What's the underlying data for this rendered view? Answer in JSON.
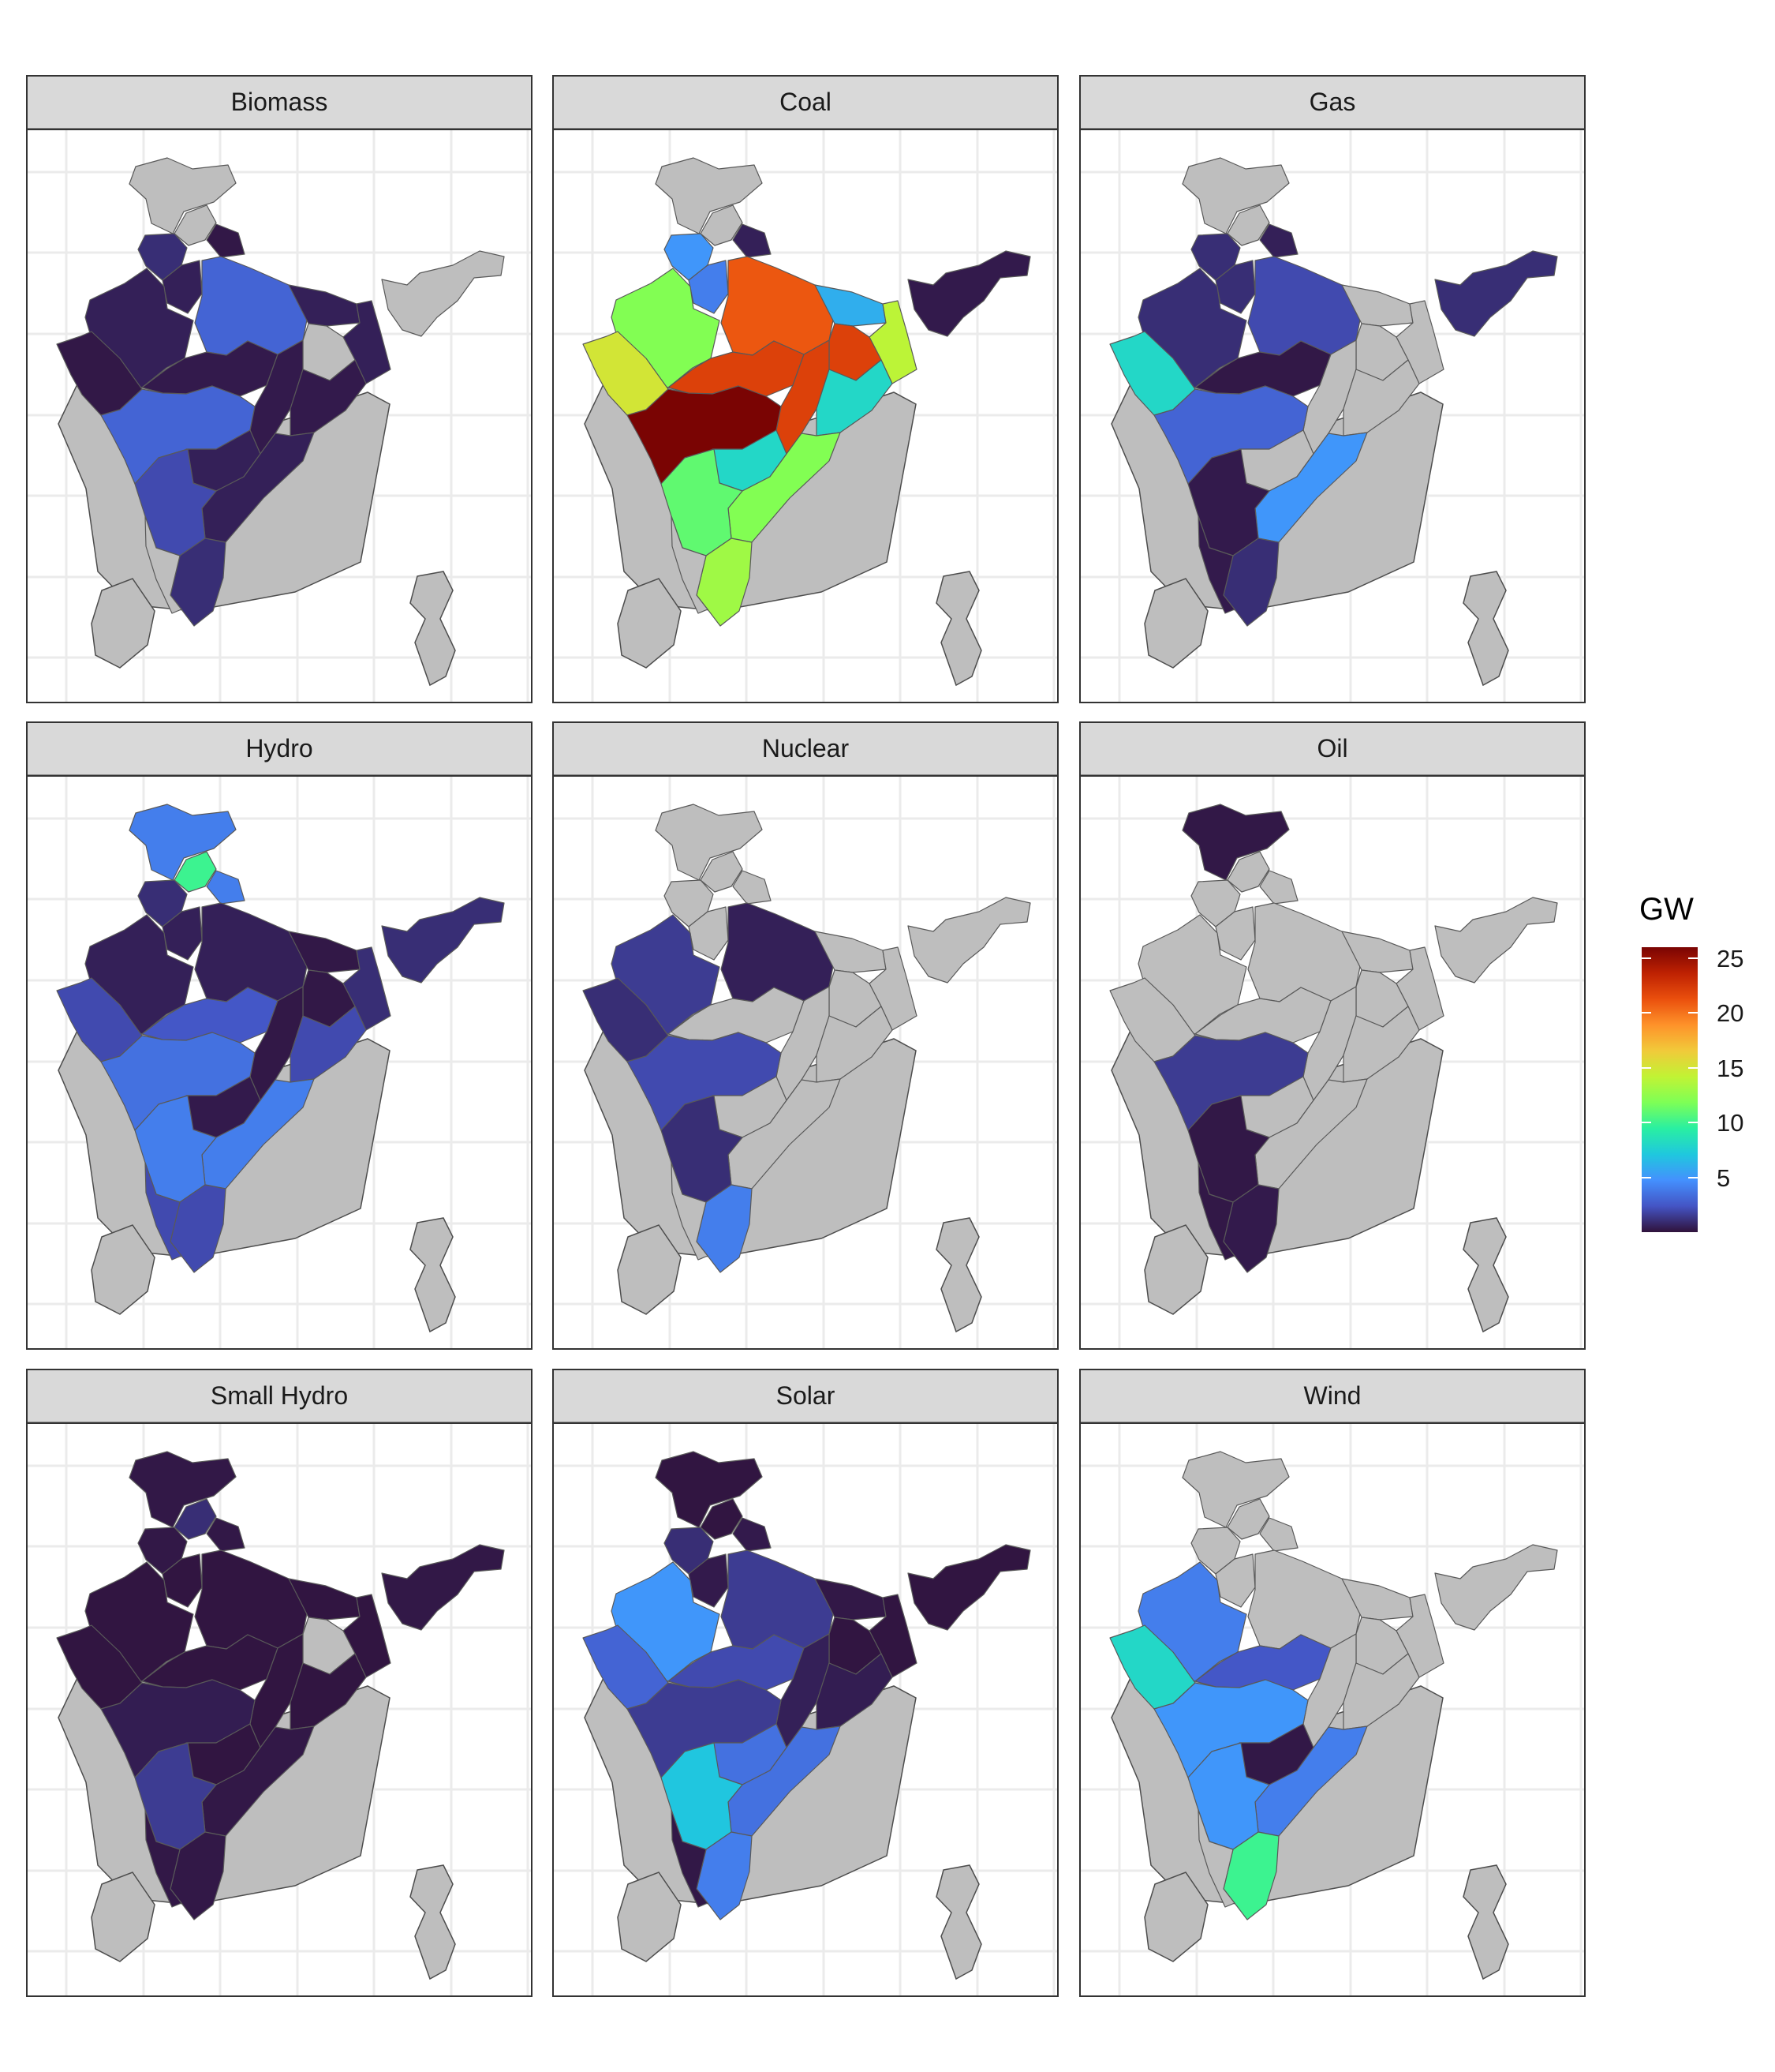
{
  "chart_data": {
    "type": "choropleth",
    "facet_by": "fuel",
    "legend": {
      "title": "GW",
      "ticks": [
        5,
        10,
        15,
        20,
        25
      ],
      "tick_labels": [
        "5",
        "10",
        "15",
        "20",
        "25"
      ],
      "range": [
        0,
        26
      ],
      "palette": [
        "#30123b",
        "#4454c4",
        "#4490fe",
        "#1fc8de",
        "#29efa2",
        "#7dff56",
        "#c1f334",
        "#f1ca3a",
        "#fe922a",
        "#ea4f0d",
        "#be2102",
        "#7a0403"
      ],
      "placement": "right"
    },
    "no_data_color": "#bebebe",
    "panels": [
      {
        "label": "Biomass",
        "values": {
          "JK": null,
          "HP": null,
          "PB": 1,
          "HR": 0.5,
          "UK": 0.2,
          "RJ": 0.5,
          "UP": 3,
          "BR": 0.5,
          "NE": null,
          "WB": 0.5,
          "GJ": 0.2,
          "MP": 0.3,
          "JH": null,
          "CG": 0.3,
          "OD": 0.3,
          "MH": 3,
          "TG": 0.5,
          "AP": 0.5,
          "KA": 2,
          "TN": 1,
          "KL": null
        }
      },
      {
        "label": "Coal",
        "values": {
          "JK": null,
          "HP": null,
          "PB": 5,
          "HR": 4,
          "UK": 0.5,
          "RJ": 12,
          "UP": 21,
          "BR": 6,
          "NE": 0.3,
          "WB": 14,
          "GJ": 15,
          "MP": 22,
          "JH": 22,
          "CG": 22,
          "OD": 8,
          "MH": 26,
          "TG": 8,
          "AP": 12,
          "KA": 11,
          "TN": 13,
          "KL": null
        }
      },
      {
        "label": "Gas",
        "values": {
          "JK": null,
          "HP": null,
          "PB": 1,
          "HR": 1,
          "UK": 0.5,
          "RJ": 1,
          "UP": 2,
          "BR": null,
          "NE": 1,
          "WB": null,
          "GJ": 8,
          "MP": 0.2,
          "JH": null,
          "CG": null,
          "OD": null,
          "MH": 3,
          "TG": null,
          "AP": 5,
          "KA": 0.3,
          "TN": 1,
          "KL": 0.3
        }
      },
      {
        "label": "Hydro",
        "values": {
          "JK": 4,
          "HP": 10,
          "PB": 1,
          "HR": 0.5,
          "UK": 4,
          "RJ": 0.5,
          "UP": 0.5,
          "BR": 0.2,
          "NE": 1,
          "WB": 1,
          "GJ": 2,
          "MP": 2.5,
          "JH": 0.2,
          "CG": 0.2,
          "OD": 2,
          "MH": 3.5,
          "TG": 0.3,
          "AP": 4,
          "KA": 4,
          "TN": 2,
          "KL": 2
        }
      },
      {
        "label": "Nuclear",
        "values": {
          "JK": null,
          "HP": null,
          "PB": null,
          "HR": null,
          "UK": null,
          "RJ": 1.5,
          "UP": 0.5,
          "BR": null,
          "NE": null,
          "WB": null,
          "GJ": 1,
          "MP": null,
          "JH": null,
          "CG": null,
          "OD": null,
          "MH": 2,
          "TG": null,
          "AP": null,
          "KA": 1,
          "TN": 4,
          "KL": null
        }
      },
      {
        "label": "Oil",
        "values": {
          "JK": 0.2,
          "HP": null,
          "PB": null,
          "HR": null,
          "UK": null,
          "RJ": null,
          "UP": null,
          "BR": null,
          "NE": null,
          "WB": null,
          "GJ": null,
          "MP": null,
          "JH": null,
          "CG": null,
          "OD": null,
          "MH": 1.5,
          "TG": null,
          "AP": null,
          "KA": 0.2,
          "TN": 0.3,
          "KL": 0.2
        }
      },
      {
        "label": "Small Hydro",
        "values": {
          "JK": 0.2,
          "HP": 1,
          "PB": 0.2,
          "HR": 0.1,
          "UK": 0.2,
          "RJ": 0.1,
          "UP": 0.1,
          "BR": 0.1,
          "NE": 0.2,
          "WB": 0.1,
          "GJ": 0.1,
          "MP": 0.1,
          "JH": null,
          "CG": 0.1,
          "OD": 0.1,
          "MH": 0.4,
          "TG": 0.1,
          "AP": 0.2,
          "KA": 1.5,
          "TN": 0.2,
          "KL": 0.2
        }
      },
      {
        "label": "Solar",
        "values": {
          "JK": 0.1,
          "HP": 0.1,
          "PB": 1,
          "HR": 0.3,
          "UK": 0.3,
          "RJ": 5,
          "UP": 1.5,
          "BR": 0.2,
          "NE": 0.1,
          "WB": 0.1,
          "GJ": 3,
          "MP": 2,
          "JH": 0.1,
          "CG": 0.5,
          "OD": 0.4,
          "MH": 1.5,
          "TG": 3.5,
          "AP": 3.5,
          "KA": 7,
          "TN": 4,
          "KL": 0.2
        }
      },
      {
        "label": "Wind",
        "values": {
          "JK": null,
          "HP": null,
          "PB": null,
          "HR": null,
          "UK": null,
          "RJ": 4,
          "UP": null,
          "BR": null,
          "NE": null,
          "WB": null,
          "GJ": 8,
          "MP": 2.5,
          "JH": null,
          "CG": null,
          "OD": null,
          "MH": 5,
          "TG": 0.2,
          "AP": 4,
          "KA": 5,
          "TN": 10,
          "KL": null
        }
      }
    ]
  }
}
